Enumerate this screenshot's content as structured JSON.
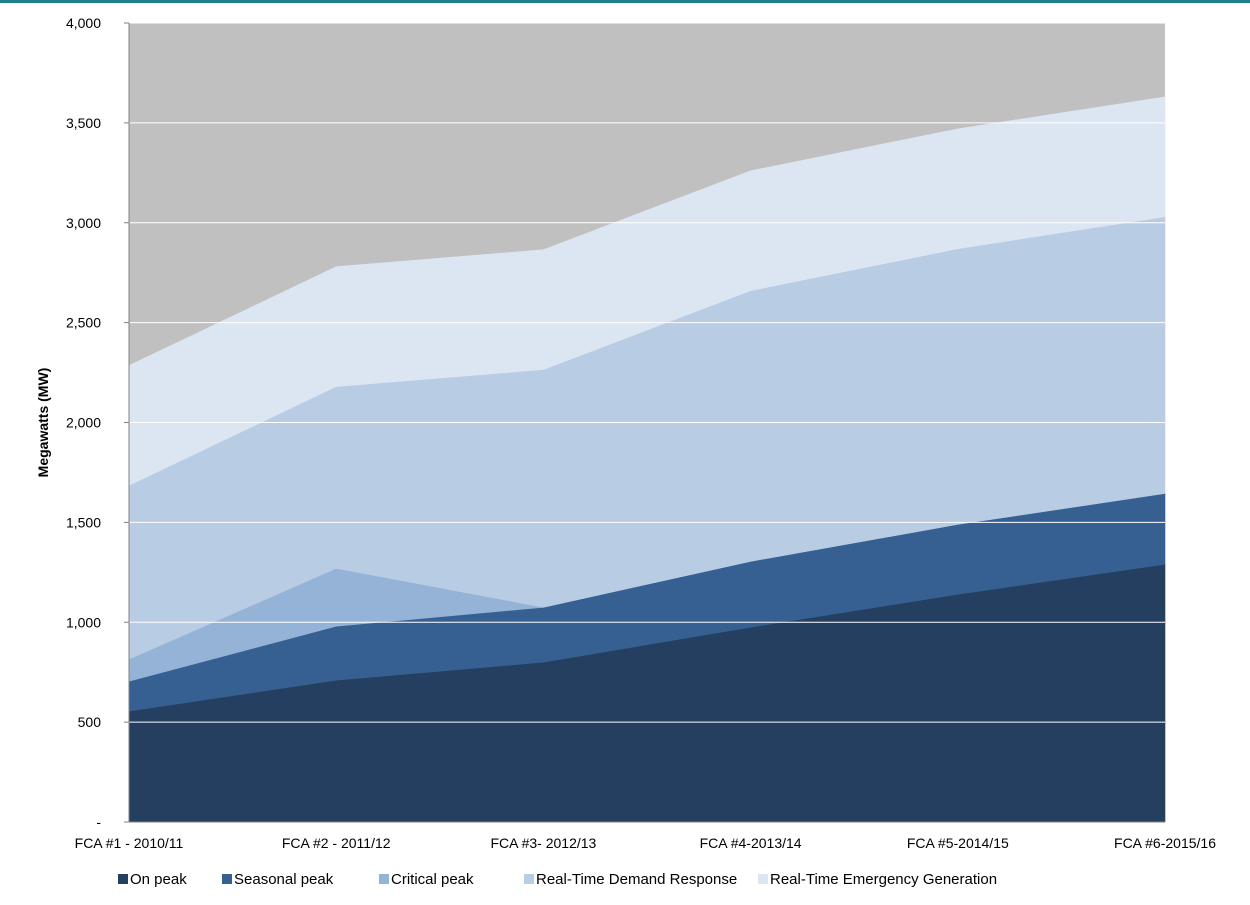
{
  "chart_data": {
    "type": "area",
    "stacked": true,
    "title": "",
    "xlabel": "",
    "ylabel": "Megawatts  (MW)",
    "ylim": [
      0,
      4000
    ],
    "y_ticks": [
      0,
      500,
      1000,
      1500,
      2000,
      2500,
      3000,
      3500,
      4000
    ],
    "y_tick_labels": [
      "-",
      "500",
      "1,000",
      "1,500",
      "2,000",
      "2,500",
      "3,000",
      "3,500",
      "4,000"
    ],
    "categories": [
      "FCA #1 - 2010/11",
      "FCA #2 - 2011/12",
      "FCA #3- 2012/13",
      "FCA #4-2013/14",
      "FCA #5-2014/15",
      "FCA #6-2015/16"
    ],
    "grid": true,
    "plot_background": "#c0c0c0",
    "legend_position": "bottom",
    "series": [
      {
        "name": "On peak",
        "color": "#243f60",
        "values": [
          555,
          710,
          800,
          975,
          1140,
          1290
        ]
      },
      {
        "name": "Seasonal peak",
        "color": "#376092",
        "values": [
          150,
          270,
          275,
          330,
          350,
          355
        ]
      },
      {
        "name": "Critical peak",
        "color": "#95b3d7",
        "values": [
          110,
          290,
          0,
          0,
          0,
          0
        ]
      },
      {
        "name": "Real-Time  Demand Response",
        "color": "#b8cce4",
        "values": [
          870,
          910,
          1190,
          1355,
          1380,
          1385
        ]
      },
      {
        "name": "Real-Time  Emergency Generation",
        "color": "#dce6f2",
        "values": [
          600,
          600,
          600,
          600,
          600,
          600
        ]
      }
    ]
  }
}
